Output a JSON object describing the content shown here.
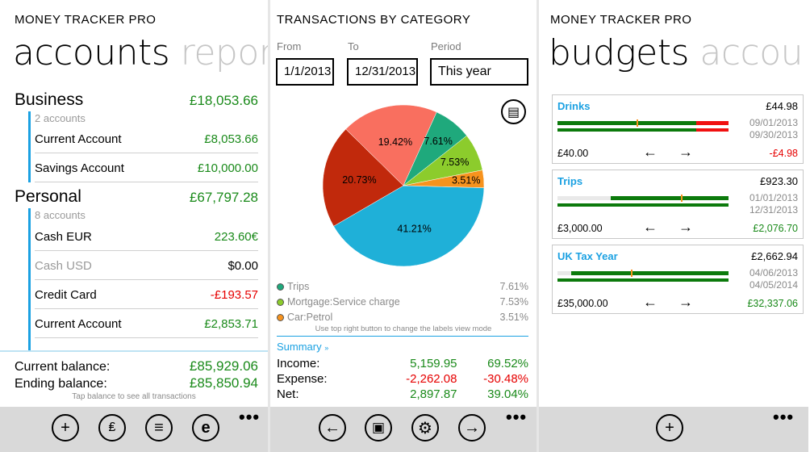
{
  "screen1": {
    "app_title": "MONEY TRACKER PRO",
    "pivot_active": "accounts",
    "pivot_next": "repor",
    "groups": [
      {
        "name": "Business",
        "total": "£18,053.66",
        "count": "2 accounts",
        "accounts": [
          {
            "name": "Current Account",
            "value": "£8,053.66"
          },
          {
            "name": "Savings Account",
            "value": "£10,000.00"
          }
        ]
      },
      {
        "name": "Personal",
        "total": "£67,797.28",
        "count": "8 accounts",
        "accounts": [
          {
            "name": "Cash EUR",
            "value": "223.60€"
          },
          {
            "name": "Cash USD",
            "value": "$0.00"
          },
          {
            "name": "Credit Card",
            "value": "-£193.57"
          },
          {
            "name": "Current Account",
            "value": "£2,853.71"
          }
        ]
      }
    ],
    "current_balance_label": "Current balance:",
    "current_balance": "£85,929.06",
    "ending_balance_label": "Ending balance:",
    "ending_balance": "£85,850.94",
    "hint": "Tap balance to see all transactions"
  },
  "screen2": {
    "title": "TRANSACTIONS BY CATEGORY",
    "from_label": "From",
    "from_value": "1/1/2013",
    "to_label": "To",
    "to_value": "12/31/2013",
    "period_label": "Period",
    "period_value": "This year",
    "legend": [
      {
        "name": "Trips",
        "pct": "7.61%",
        "color": "#1fa97c"
      },
      {
        "name": "Mortgage:Service charge",
        "pct": "7.53%",
        "color": "#8ccc2c"
      },
      {
        "name": "Car:Petrol",
        "pct": "3.51%",
        "color": "#f7931e"
      }
    ],
    "legend_hint": "Use top right button to change the labels view mode",
    "summary_label": "Summary",
    "summary": [
      {
        "label": "Income:",
        "amount": "5,159.95",
        "pct": "69.52%",
        "tone": "green"
      },
      {
        "label": "Expense:",
        "amount": "-2,262.08",
        "pct": "-30.48%",
        "tone": "red"
      },
      {
        "label": "Net:",
        "amount": "2,897.87",
        "pct": "39.04%",
        "tone": "green"
      }
    ]
  },
  "chart_data": {
    "type": "pie",
    "labels": [
      "41.21%",
      "20.73%",
      "19.42%",
      "7.61%",
      "7.53%",
      "3.51%"
    ],
    "values": [
      41.21,
      20.73,
      19.42,
      7.61,
      7.53,
      3.51
    ],
    "colors": [
      "#1fb0d8",
      "#c1290c",
      "#f96f5f",
      "#1fa97c",
      "#8ccc2c",
      "#f7931e"
    ]
  },
  "screen3": {
    "app_title": "MONEY TRACKER PRO",
    "pivot_active": "budgets",
    "pivot_next": "accou",
    "budgets": [
      {
        "name": "Drinks",
        "amount": "£44.98",
        "start": "09/01/2013",
        "end": "09/30/2013",
        "limit": "£40.00",
        "remaining": "-£4.98",
        "tone": "red",
        "fill": 1.12,
        "elapsed": 0.46
      },
      {
        "name": "Trips",
        "amount": "£923.30",
        "start": "01/01/2013",
        "end": "12/31/2013",
        "limit": "£3,000.00",
        "remaining": "£2,076.70",
        "tone": "green",
        "fill": 0.31,
        "elapsed": 0.72
      },
      {
        "name": "UK Tax Year",
        "amount": "£2,662.94",
        "start": "04/06/2013",
        "end": "04/05/2014",
        "limit": "£35,000.00",
        "remaining": "£32,337.06",
        "tone": "green",
        "fill": 0.08,
        "elapsed": 0.43
      }
    ]
  },
  "icons": {
    "add": "+",
    "transfer": "₤",
    "list": "≡",
    "browser": "e",
    "back": "←",
    "window": "▣",
    "settings": "⚙",
    "forward": "→",
    "more": "•••",
    "arrow_left": "←",
    "arrow_right": "→",
    "label_mode": "▤"
  }
}
